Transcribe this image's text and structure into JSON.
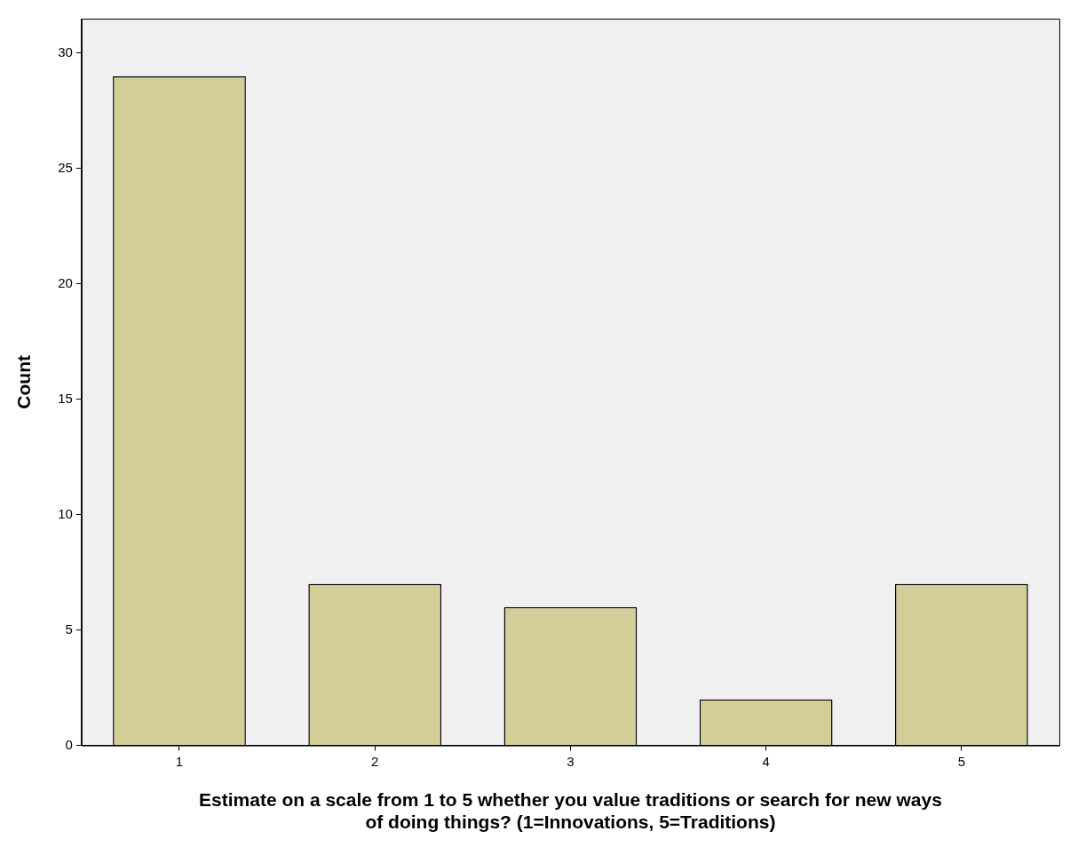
{
  "chart_data": {
    "type": "bar",
    "xlabel": "Estimate on a scale from 1 to 5 whether you value traditions or search for new ways of doing things? (1=Innovations, 5=Traditions)",
    "ylabel": "Count",
    "categories": [
      "1",
      "2",
      "3",
      "4",
      "5"
    ],
    "values": [
      29,
      7,
      6,
      2,
      7
    ],
    "color": "#d3ce97",
    "ylim": [
      0,
      31.5
    ],
    "yticks": [
      0,
      5,
      10,
      15,
      20,
      25,
      30
    ],
    "grid": false
  }
}
